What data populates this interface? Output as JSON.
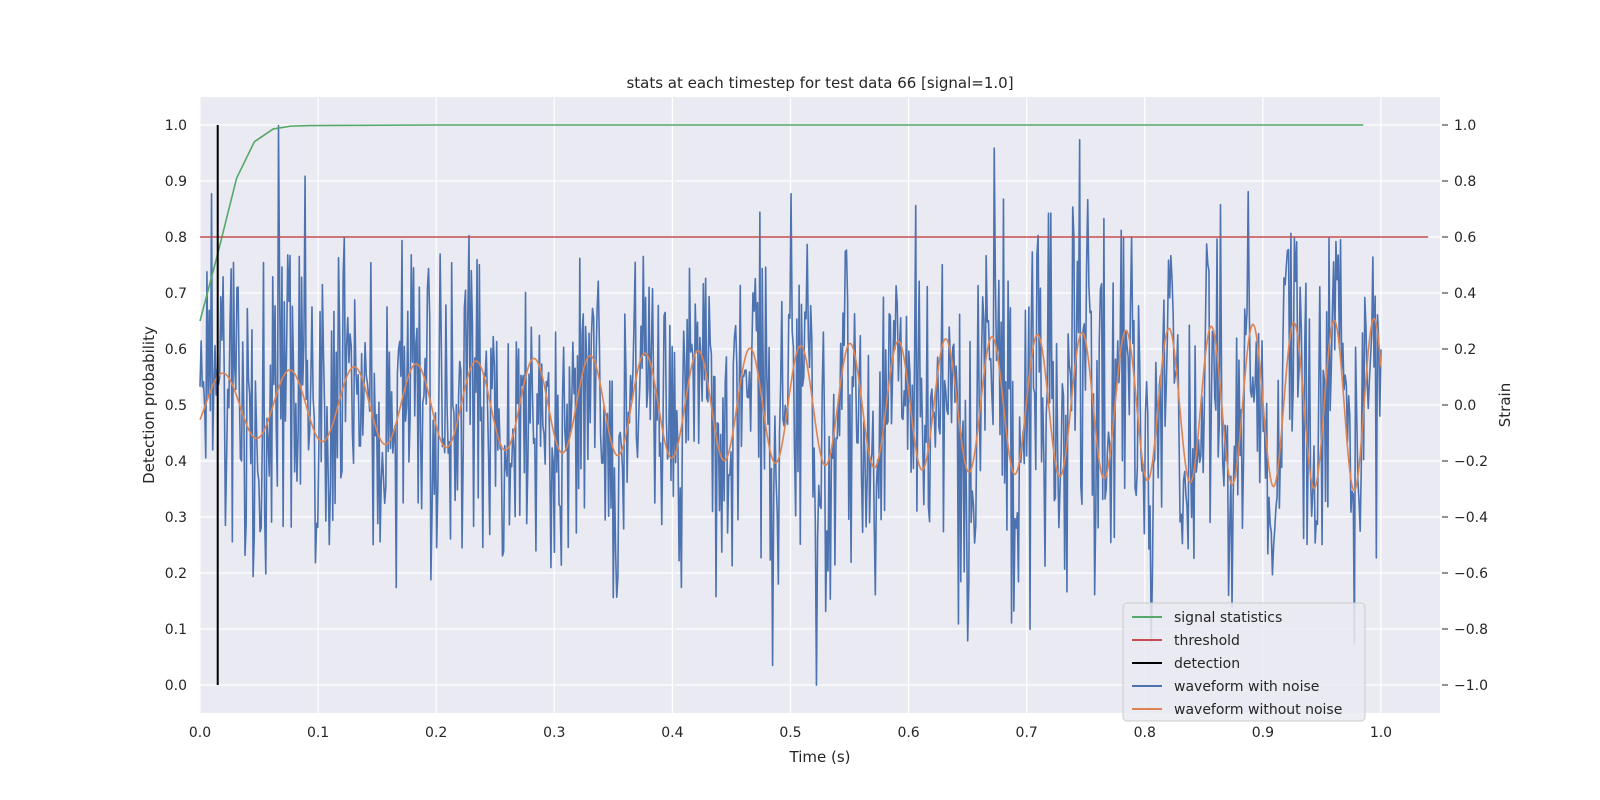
{
  "chart_data": {
    "type": "line",
    "title": "stats at each timestep for test data 66 [signal=1.0]",
    "xlabel": "Time (s)",
    "ylabel_left": "Detection probability",
    "ylabel_right": "Strain",
    "xlim": [
      0.0,
      1.05
    ],
    "ylim_left": [
      -0.05,
      1.05
    ],
    "ylim_right": [
      -1.1,
      1.1
    ],
    "grid": true,
    "x_ticks": [
      "0.0",
      "0.1",
      "0.2",
      "0.3",
      "0.4",
      "0.5",
      "0.6",
      "0.7",
      "0.8",
      "0.9",
      "1.0"
    ],
    "y_left_ticks": [
      "0.0",
      "0.1",
      "0.2",
      "0.3",
      "0.4",
      "0.5",
      "0.6",
      "0.7",
      "0.8",
      "0.9",
      "1.0"
    ],
    "y_right_ticks": [
      "−1.0",
      "−0.8",
      "−0.6",
      "−0.4",
      "−0.2",
      "0.0",
      "0.2",
      "0.4",
      "0.6",
      "0.8",
      "1.0"
    ],
    "legend_position": "lower right",
    "series": [
      {
        "name": "signal statistics",
        "axis": "left",
        "color": "#55a868",
        "x": [
          0.0,
          0.015,
          0.031,
          0.046,
          0.062,
          0.077,
          0.093,
          0.2,
          0.4,
          0.6,
          0.8,
          0.985
        ],
        "y": [
          0.65,
          0.77,
          0.905,
          0.97,
          0.993,
          0.998,
          0.999,
          1.0,
          1.0,
          1.0,
          1.0,
          1.0
        ]
      },
      {
        "name": "threshold",
        "axis": "left",
        "color": "#c44e52",
        "x": [
          0.0,
          1.04
        ],
        "y": [
          0.8,
          0.8
        ]
      },
      {
        "name": "detection",
        "axis": "left",
        "color": "#000000",
        "x": [
          0.015,
          0.015
        ],
        "y": [
          0.0,
          1.0
        ]
      },
      {
        "name": "waveform with noise",
        "axis": "right",
        "color": "#4c72b0",
        "x_range": [
          0.0,
          1.0
        ],
        "n_points": 1024,
        "noise_amplitude": 0.28,
        "y_min": -1.0,
        "y_max": 1.0
      },
      {
        "name": "waveform without noise",
        "axis": "right",
        "color": "#dd8452",
        "x_range": [
          0.0,
          1.0
        ],
        "n_points": 1024,
        "amplitude_start": 0.11,
        "amplitude_end": 0.31,
        "frequency_start_hz": 17,
        "frequency_end_hz": 30
      }
    ]
  }
}
